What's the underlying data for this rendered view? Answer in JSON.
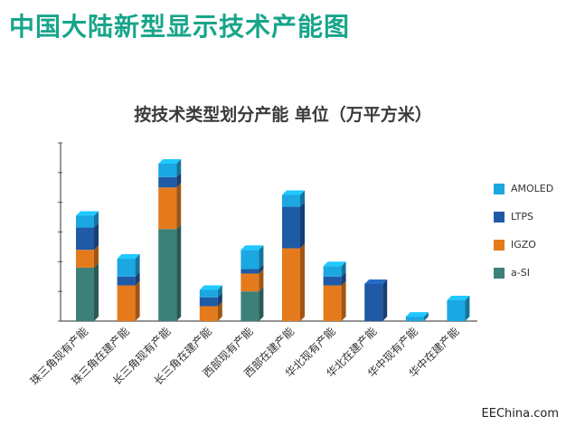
{
  "page": {
    "title": "中国大陆新型显示技术产能图",
    "watermark": "EEChina.com"
  },
  "chart_data": {
    "type": "bar",
    "stacked": true,
    "title": "按技术类型划分产能 单位（万平方米）",
    "xlabel": "",
    "ylabel": "",
    "ylim": [
      0,
      6
    ],
    "categories": [
      "珠三角现有产能",
      "珠三角在建产能",
      "长三角现有产能",
      "长三角在建产能",
      "西部现有产能",
      "西部在建产能",
      "华北现有产能",
      "华北在建产能",
      "华中现有产能",
      "华中在建产能"
    ],
    "series": [
      {
        "name": "a-SI",
        "color": "#3d7f79",
        "values": [
          1.8,
          0,
          3.1,
          0,
          1.0,
          0,
          0,
          0,
          0,
          0
        ]
      },
      {
        "name": "IGZO",
        "color": "#e57a1c",
        "values": [
          0.6,
          1.2,
          1.4,
          0.5,
          0.6,
          2.45,
          1.2,
          0,
          0,
          0
        ]
      },
      {
        "name": "LTPS",
        "color": "#1f5aa6",
        "values": [
          0.75,
          0.3,
          0.35,
          0.3,
          0.15,
          1.4,
          0.3,
          1.25,
          0,
          0
        ]
      },
      {
        "name": "AMOLED",
        "color": "#1ba7e1",
        "values": [
          0.4,
          0.6,
          0.45,
          0.25,
          0.65,
          0.4,
          0.35,
          0,
          0.15,
          0.7
        ]
      }
    ],
    "legend": "right",
    "legend_order": [
      "AMOLED",
      "LTPS",
      "IGZO",
      "a-SI"
    ],
    "grid": false
  }
}
